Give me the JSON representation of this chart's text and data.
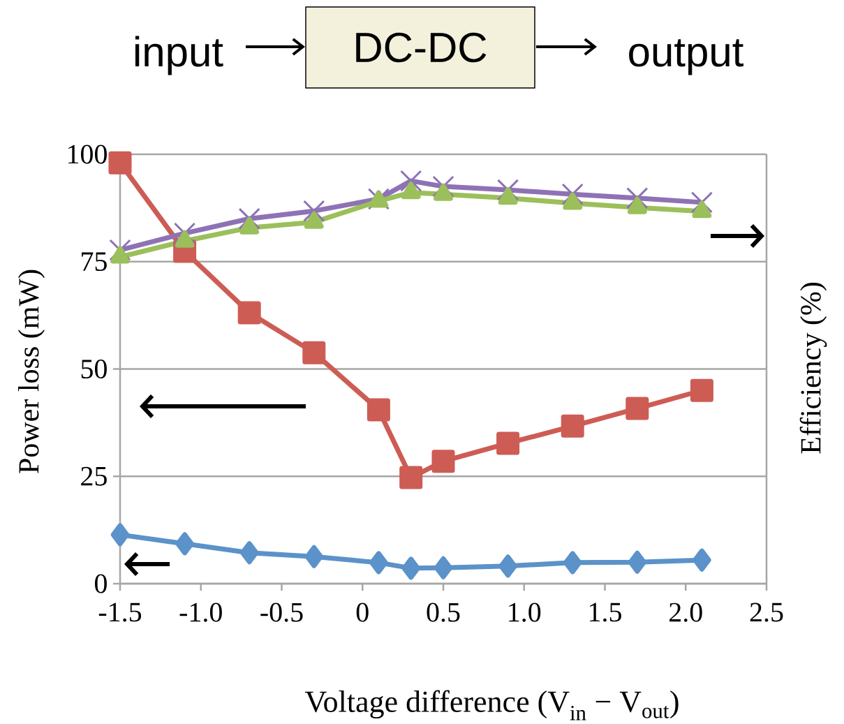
{
  "chart_data": {
    "type": "line",
    "annotations": [
      "input",
      "DC-DC",
      "output"
    ],
    "xlabel": "Voltage difference (V$_{in}$ − V$_{out}$)",
    "ylabel": "Power loss (mW)",
    "y2label": "Efficiency (%)",
    "x": [
      -1.5,
      -1.1,
      -0.7,
      -0.3,
      0.1,
      0.3,
      0.5,
      0.9,
      1.3,
      1.7,
      2.1
    ],
    "series": [
      {
        "color": "#5b92c9",
        "marker": "diamond",
        "values": [
          11.4,
          9.3,
          7.2,
          6.3,
          4.9,
          3.6,
          3.7,
          4.1,
          4.9,
          5.0,
          5.5
        ]
      },
      {
        "color": "#cd5c55",
        "marker": "square",
        "values": [
          98,
          77.4,
          63.1,
          53.8,
          40.5,
          24.7,
          28.5,
          32.7,
          36.7,
          40.8,
          45.0
        ]
      },
      {
        "color": "#8e72b5",
        "marker": "cross",
        "values": [
          77.7,
          81.6,
          85.0,
          86.8,
          89.6,
          93.8,
          92.5,
          91.7,
          90.7,
          89.8,
          88.8
        ]
      },
      {
        "color": "#9bbf5a",
        "marker": "triangle",
        "values": [
          76.1,
          79.8,
          82.9,
          84.2,
          89.1,
          91.1,
          90.7,
          89.8,
          88.6,
          87.6,
          86.7
        ]
      }
    ],
    "xlim": [
      -1.5,
      2.5
    ],
    "xticks": [
      -1.5,
      {
        "value": -1.0,
        "label": "-1.0"
      },
      -0.5,
      0,
      0.5,
      {
        "value": 1.0,
        "label": "1.0"
      },
      1.5,
      {
        "value": 2.0,
        "label": "2.0"
      },
      2.5
    ],
    "ylim": [
      0,
      100
    ],
    "yticks": [
      0,
      25,
      50,
      75,
      100
    ],
    "grid": "y",
    "line_style": "solid"
  }
}
